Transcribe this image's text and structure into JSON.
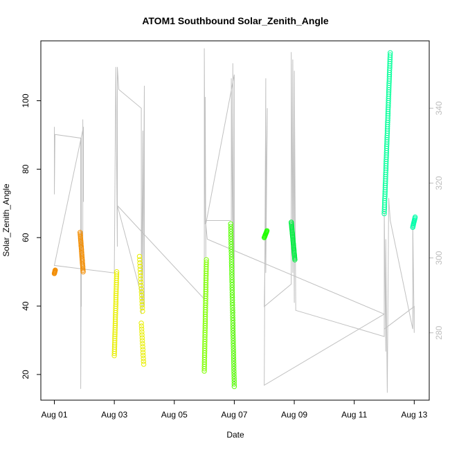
{
  "chart_data": {
    "type": "scatter",
    "title": "ATOM1 Southbound Solar_Zenith_Angle",
    "xlabel": "Date",
    "ylabel": "Solar_Zenith_Angle",
    "x_ticks": [
      "Aug 01",
      "Aug 03",
      "Aug 05",
      "Aug 07",
      "Aug 09",
      "Aug 11",
      "Aug 13"
    ],
    "x_tick_days": [
      1,
      3,
      5,
      7,
      9,
      11,
      13
    ],
    "xlim_days": [
      0.55,
      13.5
    ],
    "ylim": [
      12.5,
      117.5
    ],
    "y_ticks": [
      20,
      40,
      60,
      80,
      100
    ],
    "y2_ticks": [
      280,
      300,
      320,
      340
    ],
    "y2lim": [
      262,
      358
    ],
    "grid": false,
    "secondary_series": {
      "name": "",
      "color": "#c0c0c0",
      "style": "line",
      "path": [
        [
          1.0,
          335
        ],
        [
          1.0,
          317
        ],
        [
          1.02,
          333
        ],
        [
          1.9,
          332
        ],
        [
          1.9,
          287
        ],
        [
          1.88,
          332
        ],
        [
          1.88,
          265
        ],
        [
          1.9,
          304
        ],
        [
          1.95,
          303
        ],
        [
          1.95,
          337
        ],
        [
          1.97,
          315
        ],
        [
          1.97,
          335
        ],
        [
          1.0,
          298
        ],
        [
          3.0,
          296
        ],
        [
          3.05,
          351
        ],
        [
          3.1,
          303
        ],
        [
          3.1,
          351
        ],
        [
          3.15,
          345
        ],
        [
          3.9,
          340
        ],
        [
          3.9,
          285
        ],
        [
          3.95,
          334
        ],
        [
          3.95,
          286
        ],
        [
          4.0,
          346
        ],
        [
          4.0,
          287
        ],
        [
          3.1,
          314
        ],
        [
          6.0,
          289
        ],
        [
          6.0,
          356
        ],
        [
          6.03,
          309
        ],
        [
          6.03,
          343
        ],
        [
          6.05,
          300
        ],
        [
          6.05,
          310
        ],
        [
          6.9,
          310
        ],
        [
          6.9,
          348
        ],
        [
          6.95,
          300
        ],
        [
          6.95,
          352
        ],
        [
          7.0,
          266
        ],
        [
          7.0,
          349
        ],
        [
          6.05,
          309
        ],
        [
          6.1,
          305
        ],
        [
          12.0,
          285
        ],
        [
          8.0,
          266
        ],
        [
          8.05,
          348
        ],
        [
          8.05,
          296
        ],
        [
          8.1,
          340
        ],
        [
          8.0,
          287
        ],
        [
          8.9,
          293
        ],
        [
          8.9,
          355
        ],
        [
          8.95,
          296
        ],
        [
          8.95,
          353
        ],
        [
          9.0,
          288
        ],
        [
          9.0,
          350
        ],
        [
          9.05,
          286
        ],
        [
          12.0,
          279
        ],
        [
          12.0,
          313
        ],
        [
          12.05,
          275
        ],
        [
          12.05,
          305
        ],
        [
          12.1,
          264
        ],
        [
          12.15,
          316
        ],
        [
          12.2,
          310
        ],
        [
          12.95,
          281
        ],
        [
          12.95,
          310
        ],
        [
          13.0,
          280
        ],
        [
          13.0,
          287
        ],
        [
          12.0,
          281
        ]
      ]
    },
    "series": [
      {
        "name": "",
        "color": "#f28c00",
        "x_range": [
          1.0,
          1.03
        ],
        "y_range": [
          49.5,
          50.5
        ],
        "count": 6
      },
      {
        "name": "",
        "color": "#f28c00",
        "x_range": [
          1.86,
          1.96
        ],
        "y_range": [
          61.5,
          50.0
        ],
        "count": 26
      },
      {
        "name": "",
        "color": "#e8ee00",
        "x_range": [
          3.0,
          3.08
        ],
        "y_range": [
          25.5,
          50.0
        ],
        "count": 40
      },
      {
        "name": "",
        "color": "#e8ee00",
        "x_range": [
          3.84,
          3.94
        ],
        "y_range": [
          54.5,
          38.5
        ],
        "count": 18
      },
      {
        "name": "",
        "color": "#e8ee00",
        "x_range": [
          3.9,
          3.98
        ],
        "y_range": [
          35.0,
          23.0
        ],
        "count": 15
      },
      {
        "name": "",
        "color": "#7fff00",
        "x_range": [
          6.0,
          6.07
        ],
        "y_range": [
          21.0,
          53.5
        ],
        "count": 50
      },
      {
        "name": "",
        "color": "#55ff00",
        "x_range": [
          6.88,
          7.0
        ],
        "y_range": [
          64.0,
          16.5
        ],
        "count": 65
      },
      {
        "name": "",
        "color": "#22ff00",
        "x_range": [
          8.0,
          8.09
        ],
        "y_range": [
          60.0,
          62.0
        ],
        "count": 10
      },
      {
        "name": "",
        "color": "#00ee40",
        "x_range": [
          8.9,
          9.02
        ],
        "y_range": [
          64.5,
          53.5
        ],
        "count": 30
      },
      {
        "name": "",
        "color": "#00ff99",
        "x_range": [
          12.0,
          12.2
        ],
        "y_range": [
          67.0,
          114.0
        ],
        "count": 75
      },
      {
        "name": "",
        "color": "#00ffaa",
        "x_range": [
          12.95,
          13.03
        ],
        "y_range": [
          63.0,
          66.0
        ],
        "count": 10
      }
    ]
  }
}
